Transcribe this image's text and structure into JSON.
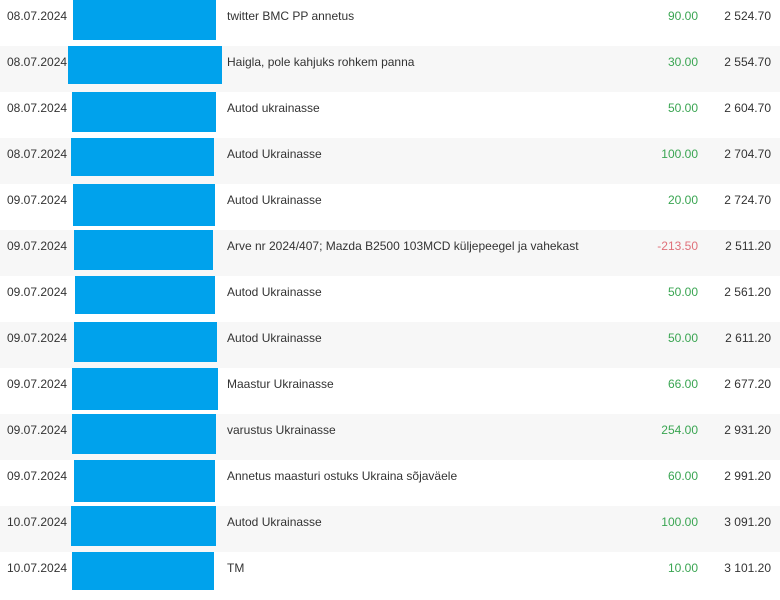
{
  "colors": {
    "positive_amount": "#3aa552",
    "negative_amount": "#e0707a",
    "redaction": "#00a2ec",
    "alt_row_background": "#f7f7f7"
  },
  "rows": [
    {
      "date": "08.07.2024",
      "description": "twitter BMC PP annetus",
      "amount": "90.00",
      "balance": "2 524.70",
      "sign": "pos"
    },
    {
      "date": "08.07.2024",
      "description": "Haigla, pole kahjuks rohkem panna",
      "amount": "30.00",
      "balance": "2 554.70",
      "sign": "pos"
    },
    {
      "date": "08.07.2024",
      "description": "Autod ukrainasse",
      "amount": "50.00",
      "balance": "2 604.70",
      "sign": "pos"
    },
    {
      "date": "08.07.2024",
      "description": "Autod Ukrainasse",
      "amount": "100.00",
      "balance": "2 704.70",
      "sign": "pos"
    },
    {
      "date": "09.07.2024",
      "description": "Autod Ukrainasse",
      "amount": "20.00",
      "balance": "2 724.70",
      "sign": "pos"
    },
    {
      "date": "09.07.2024",
      "description": "Arve nr 2024/407; Mazda B2500 103MCD küljepeegel ja vahekast",
      "amount": "-213.50",
      "balance": "2 511.20",
      "sign": "neg"
    },
    {
      "date": "09.07.2024",
      "description": "Autod Ukrainasse",
      "amount": "50.00",
      "balance": "2 561.20",
      "sign": "pos"
    },
    {
      "date": "09.07.2024",
      "description": "Autod Ukrainasse",
      "amount": "50.00",
      "balance": "2 611.20",
      "sign": "pos"
    },
    {
      "date": "09.07.2024",
      "description": "Maastur Ukrainasse",
      "amount": "66.00",
      "balance": "2 677.20",
      "sign": "pos"
    },
    {
      "date": "09.07.2024",
      "description": "varustus Ukrainasse",
      "amount": "254.00",
      "balance": "2 931.20",
      "sign": "pos"
    },
    {
      "date": "09.07.2024",
      "description": "Annetus maasturi ostuks Ukraina sõjaväele",
      "amount": "60.00",
      "balance": "2 991.20",
      "sign": "pos"
    },
    {
      "date": "10.07.2024",
      "description": "Autod Ukrainasse",
      "amount": "100.00",
      "balance": "3 091.20",
      "sign": "pos"
    },
    {
      "date": "10.07.2024",
      "description": "TM",
      "amount": "10.00",
      "balance": "3 101.20",
      "sign": "pos"
    }
  ]
}
